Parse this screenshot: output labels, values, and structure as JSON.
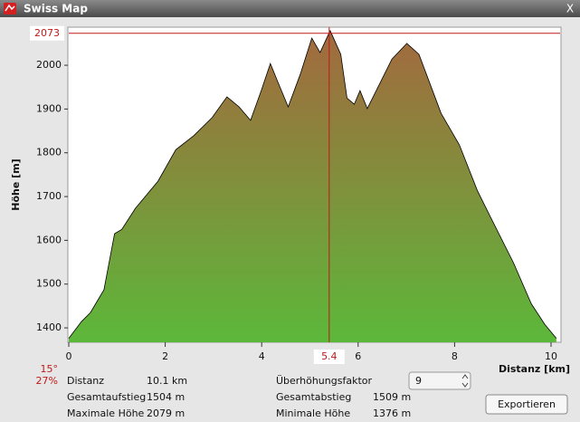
{
  "window": {
    "title": "Swiss Map",
    "close": "X"
  },
  "chart_data": {
    "type": "area",
    "ylabel": "Höhe [m]",
    "xlabel": "Distanz [km]",
    "x": [
      0,
      0.26,
      0.45,
      0.73,
      0.95,
      1.1,
      1.38,
      1.85,
      2.22,
      2.59,
      2.97,
      3.28,
      3.53,
      3.77,
      3.99,
      4.18,
      4.33,
      4.55,
      4.8,
      5.04,
      5.21,
      5.42,
      5.64,
      5.77,
      5.92,
      6.04,
      6.19,
      6.42,
      6.7,
      7.01,
      7.26,
      7.72,
      8.1,
      8.47,
      8.75,
      9.22,
      9.59,
      9.87,
      10.11
    ],
    "values": [
      1376,
      1414,
      1435,
      1487,
      1615,
      1625,
      1673,
      1735,
      1807,
      1839,
      1880,
      1928,
      1905,
      1874,
      1942,
      2004,
      1963,
      1905,
      1979,
      2062,
      2029,
      2079,
      2025,
      1925,
      1911,
      1942,
      1901,
      1952,
      2014,
      2050,
      2025,
      1890,
      1818,
      1714,
      1652,
      1549,
      1455,
      1408,
      1376
    ],
    "xlim": [
      0,
      10.15
    ],
    "ylim": [
      1367,
      2087
    ],
    "xticks": [
      0,
      2,
      4,
      6,
      8,
      10
    ],
    "yticks": [
      1400,
      1500,
      1600,
      1700,
      1800,
      1900,
      2000
    ],
    "colors": [
      "#a4683e",
      "#5cb83a"
    ],
    "line_color": "#000000",
    "marker_color": "#c01818",
    "marker_elevation": 2073,
    "marker_distance": 5.4,
    "slope_deg": "15°",
    "slope_pct": "27%"
  },
  "info": {
    "rows": [
      [
        "Distanz",
        "10.1 km",
        "Überhöhungsfaktor"
      ],
      [
        "Gesamtaufstieg",
        "1504 m",
        "Gesamtabstieg",
        "1509 m"
      ],
      [
        "Maximale Höhe",
        "2079 m",
        "Minimale Höhe",
        "1376 m"
      ]
    ],
    "factor": "9",
    "button": "Exportieren"
  }
}
